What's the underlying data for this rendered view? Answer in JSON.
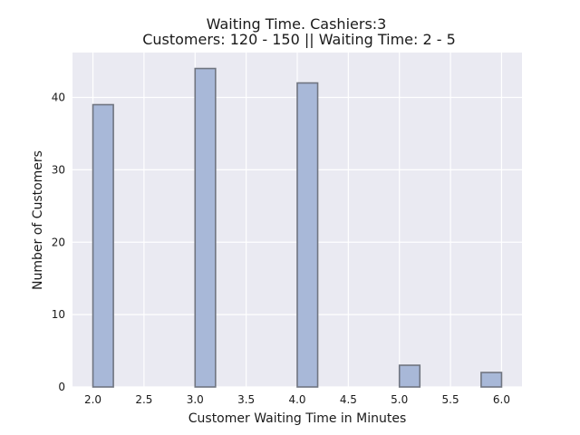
{
  "chart_data": {
    "type": "bar",
    "title": "Waiting Time. Cashiers:3",
    "subtitle": "Customers: 120 - 150 || Waiting Time: 2 - 5",
    "xlabel": "Customer Waiting Time in Minutes",
    "ylabel": "Number of Customers",
    "xlim": [
      1.8,
      6.2
    ],
    "ylim": [
      0,
      46.2
    ],
    "xticks": [
      2.0,
      2.5,
      3.0,
      3.5,
      4.0,
      4.5,
      5.0,
      5.5,
      6.0
    ],
    "xtick_labels": [
      "2.0",
      "2.5",
      "3.0",
      "3.5",
      "4.0",
      "4.5",
      "5.0",
      "5.5",
      "6.0"
    ],
    "yticks": [
      0,
      10,
      20,
      30,
      40
    ],
    "ytick_labels": [
      "0",
      "10",
      "20",
      "30",
      "40"
    ],
    "bin_width": 0.2,
    "bins": [
      {
        "x_start": 2.0,
        "value": 39
      },
      {
        "x_start": 3.0,
        "value": 44
      },
      {
        "x_start": 4.0,
        "value": 42
      },
      {
        "x_start": 5.0,
        "value": 3
      },
      {
        "x_start": 5.8,
        "value": 2
      }
    ],
    "grid": true,
    "colors": {
      "bar_fill": "#a8b8d8",
      "bar_edge": "#707580",
      "background": "#eaeaf2",
      "grid": "#ffffff"
    }
  }
}
